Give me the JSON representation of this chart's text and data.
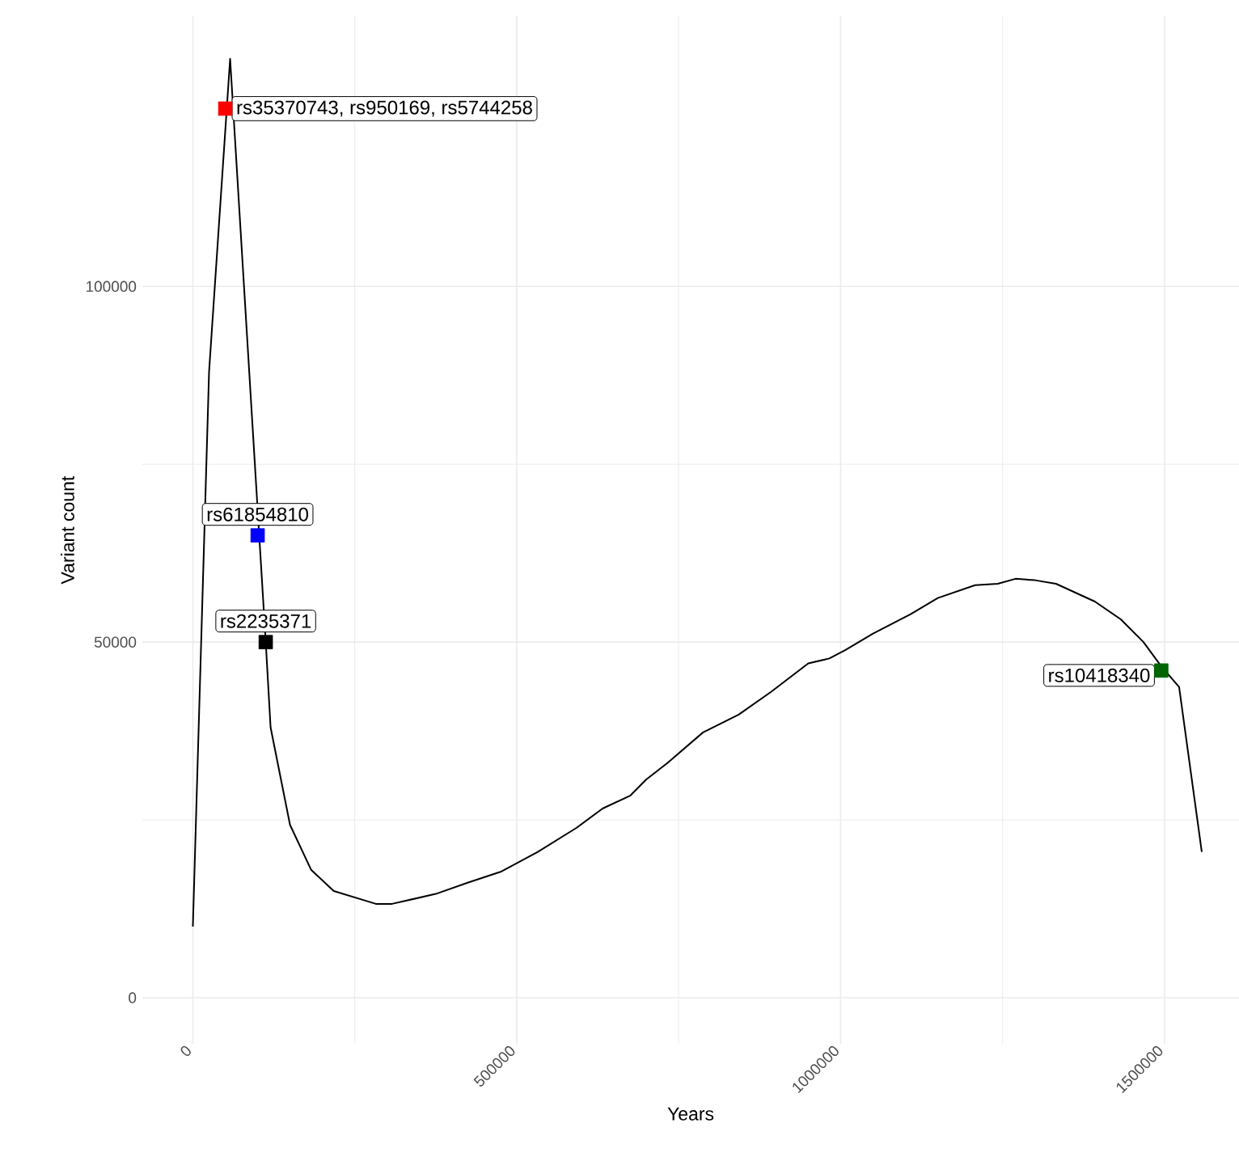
{
  "chart_data": {
    "type": "line",
    "xlabel": "Years",
    "ylabel": "Variant count",
    "xlim": [
      -78000,
      1615000
    ],
    "ylim": [
      -6500,
      138000
    ],
    "xticks": [
      0,
      500000,
      1000000,
      1500000
    ],
    "yticks": [
      0,
      50000,
      100000
    ],
    "grid": true,
    "series": [
      {
        "color": "#000000",
        "x": [
          0,
          25000,
          57500,
          112500,
          120000,
          150000,
          182500,
          217500,
          282500,
          307500,
          375000,
          425000,
          475000,
          532500,
          592500,
          632500,
          675000,
          700000,
          732500,
          787500,
          842500,
          892500,
          950000,
          982500,
          1007500,
          1050000,
          1107500,
          1150000,
          1207500,
          1242500,
          1270000,
          1300000,
          1332500,
          1392500,
          1432500,
          1467500,
          1495000,
          1522500,
          1557500
        ],
        "values": [
          10000,
          88000,
          132000,
          50000,
          38000,
          24300,
          18000,
          15000,
          13200,
          13200,
          14600,
          16200,
          17700,
          20500,
          23900,
          26600,
          28400,
          30700,
          33000,
          37300,
          39800,
          43000,
          47000,
          47700,
          48900,
          51200,
          53900,
          56200,
          58000,
          58200,
          58900,
          58700,
          58200,
          55700,
          53200,
          50000,
          46600,
          43700,
          20500
        ]
      },
      {
        "type": "scatter",
        "marker": "square",
        "x": [
          50000,
          100000,
          112500,
          1495000
        ],
        "values": [
          125000,
          65000,
          50000,
          46000
        ],
        "colors": [
          "#ff0000",
          "#0000ff",
          "#000000",
          "#006400"
        ]
      }
    ],
    "annotations": [
      {
        "text": "rs35370743, rs950169, rs5744258",
        "x": 50000,
        "y": 125000
      },
      {
        "text": "rs61854810",
        "x": 100000,
        "y": 65000
      },
      {
        "text": "rs2235371",
        "x": 112500,
        "y": 50000
      },
      {
        "text": "rs10418340",
        "x": 1495000,
        "y": 46000
      }
    ]
  }
}
